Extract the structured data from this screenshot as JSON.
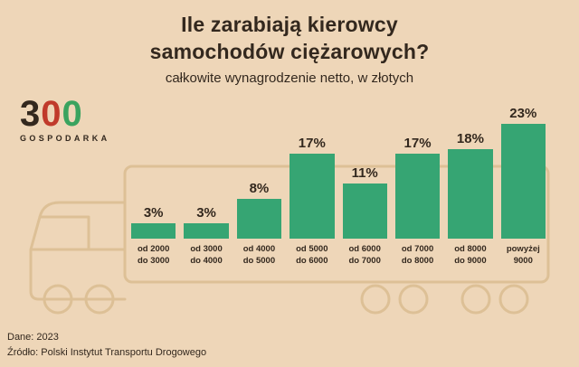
{
  "colors": {
    "background": "#eed6b8",
    "bar": "#36a573",
    "text": "#33281e",
    "truck_outline": "#ddc096",
    "logo_dark": "#33281e",
    "logo_red": "#c03a2b",
    "logo_green": "#3aa35f"
  },
  "header": {
    "title_line1": "Ile zarabiają kierowcy",
    "title_line2": "samochodów ciężarowych?",
    "subtitle": "całkowite wynagrodzenie netto, w złotych"
  },
  "logo": {
    "digits": [
      "3",
      "0",
      "0"
    ],
    "caption": "GOSPODARKA"
  },
  "chart_data": {
    "type": "bar",
    "title": "Ile zarabiają kierowcy samochodów ciężarowych?",
    "subtitle": "całkowite wynagrodzenie netto, w złotych",
    "unit": "%",
    "categories": [
      "od 2000 do 3000",
      "od 3000 do 4000",
      "od 4000 do 5000",
      "od 5000 do 6000",
      "od 6000 do 7000",
      "od 7000 do 8000",
      "od 8000 do 9000",
      "powyżej 9000"
    ],
    "category_lines": [
      [
        "od 2000",
        "do 3000"
      ],
      [
        "od 3000",
        "do 4000"
      ],
      [
        "od 4000",
        "do 5000"
      ],
      [
        "od 5000",
        "do 6000"
      ],
      [
        "od 6000",
        "do 7000"
      ],
      [
        "od 7000",
        "do 8000"
      ],
      [
        "od 8000",
        "do 9000"
      ],
      [
        "powyżej",
        "9000"
      ]
    ],
    "values": [
      3,
      3,
      8,
      17,
      11,
      17,
      18,
      23
    ],
    "value_labels": [
      "3%",
      "3%",
      "8%",
      "17%",
      "11%",
      "17%",
      "18%",
      "23%"
    ],
    "ylim": [
      0,
      25
    ],
    "grid": false,
    "legend": "none",
    "bar_color": "#36a573"
  },
  "footer": {
    "line1": "Dane: 2023",
    "line2": "Źródło: Polski Instytut Transportu Drogowego"
  }
}
